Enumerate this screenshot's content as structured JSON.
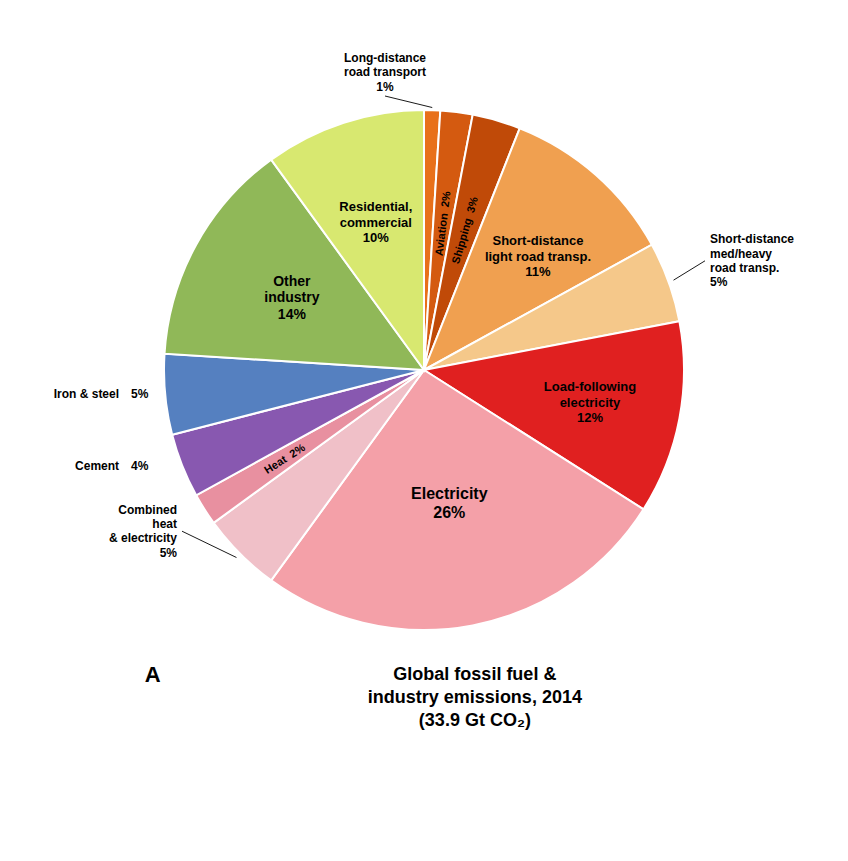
{
  "chart_data": {
    "type": "pie",
    "title": "Global fossil fuel &\nindustry emissions, 2014\n(33.9 Gt CO₂)",
    "annotations": [
      "A"
    ],
    "categories": [
      "Long-distance\nroad transport",
      "Aviation",
      "Shipping",
      "Short-distance\nlight road transp.",
      "Short-distance\nmed/heavy\nroad transp.",
      "Load-following\nelectricity",
      "Electricity",
      "Combined\nheat\n& electricity",
      "Heat",
      "Cement",
      "Iron & steel",
      "Other\nindustry",
      "Residential,\ncommercial"
    ],
    "values": [
      1,
      2,
      3,
      11,
      5,
      12,
      26,
      5,
      2,
      4,
      5,
      14,
      10
    ],
    "value_labels": [
      "1%",
      "2%",
      "3%",
      "11%",
      "5%",
      "12%",
      "26%",
      "5%",
      "2%",
      "4%",
      "5%",
      "14%",
      "10%"
    ],
    "colors": [
      "#E8701A",
      "#D45A10",
      "#C04A08",
      "#F0A050",
      "#F5C88A",
      "#E02020",
      "#F4A0A8",
      "#F0C0C8",
      "#E890A0",
      "#8858B0",
      "#5580C0",
      "#90B858",
      "#D8E870"
    ],
    "data_labels": true
  }
}
